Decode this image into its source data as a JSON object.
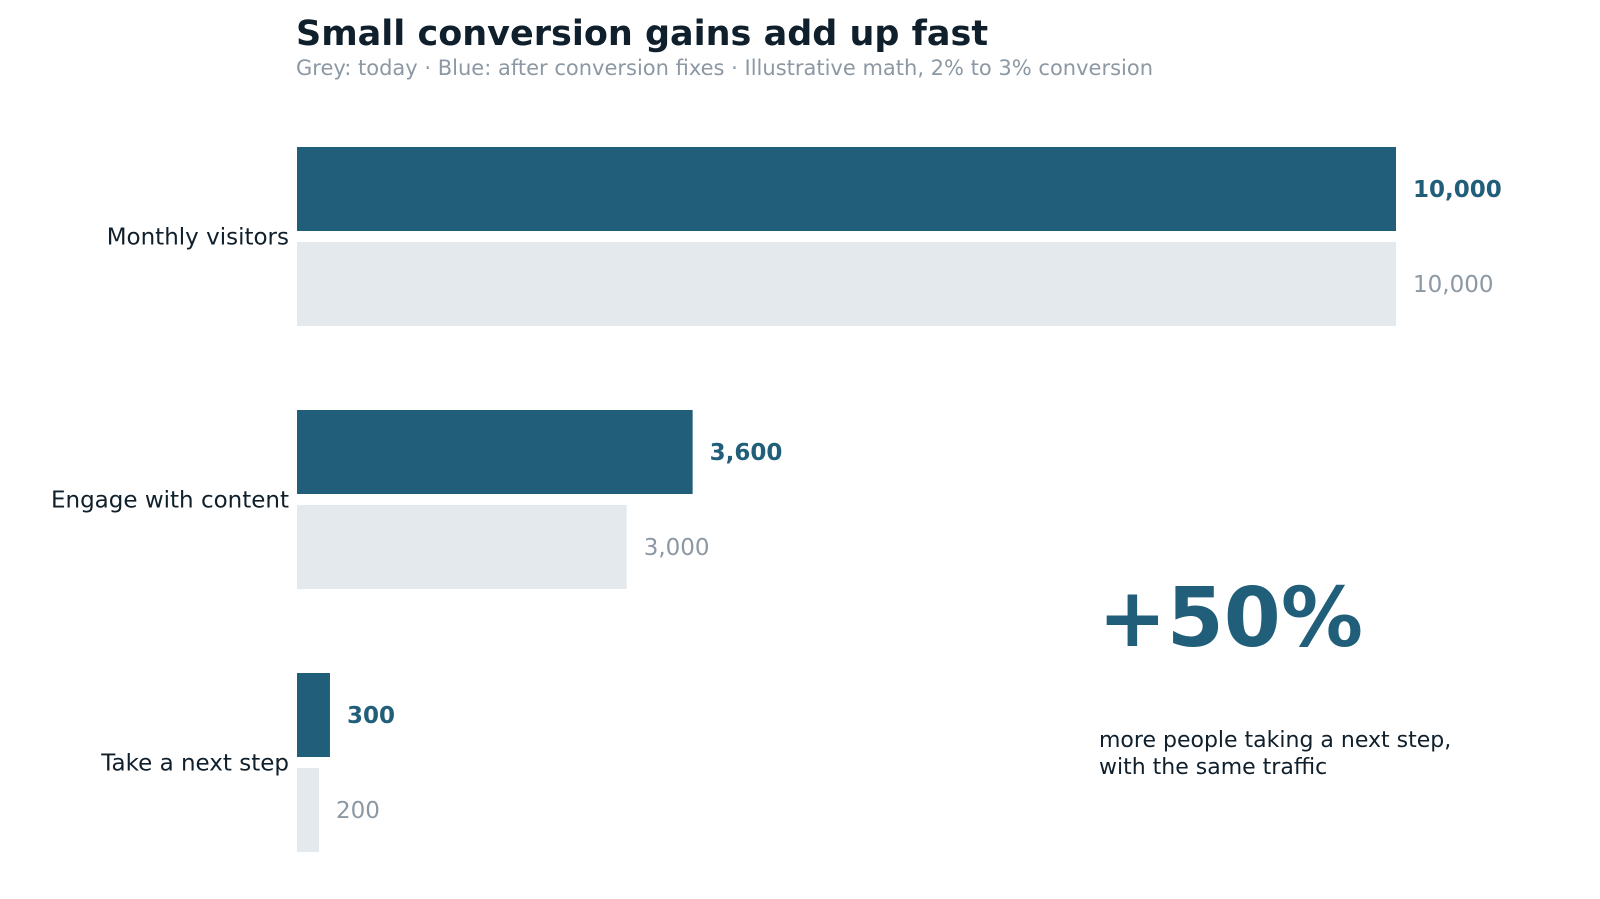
{
  "title": "Small conversion gains add up fast",
  "subtitle": "Grey: today  ·  Blue: after conversion fixes  ·  Illustrative math, 2% to 3% conversion",
  "colors": {
    "after": "#205e7a",
    "today": "#e4e9ed",
    "today_label": "#8c98a3",
    "text": "#0f1f2b"
  },
  "callout": {
    "value": "+50%",
    "line1": "more people taking a next step,",
    "line2": "with the same traffic"
  },
  "chart_data": {
    "type": "bar",
    "orientation": "horizontal",
    "categories": [
      "Monthly visitors",
      "Engage with content",
      "Take a next step"
    ],
    "series": [
      {
        "name": "Blue: after conversion fixes",
        "values": [
          10000,
          3600,
          300
        ],
        "labels": [
          "10,000",
          "3,600",
          "300"
        ]
      },
      {
        "name": "Grey: today",
        "values": [
          10000,
          3000,
          200
        ],
        "labels": [
          "10,000",
          "3,000",
          "200"
        ]
      }
    ],
    "xlim": [
      0,
      10000
    ],
    "grid": false,
    "legend": "subtitle"
  }
}
